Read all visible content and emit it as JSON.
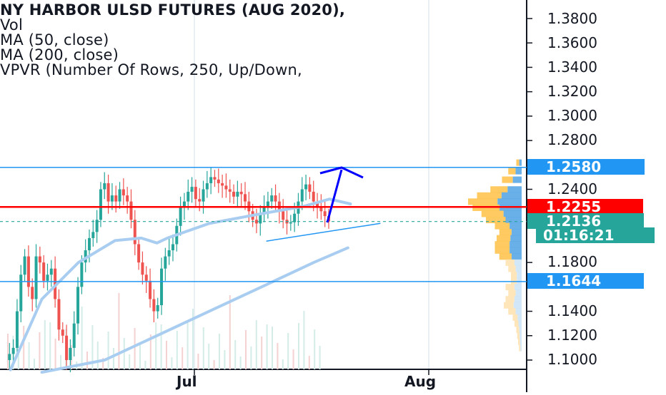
{
  "legend": {
    "title": "NY HARBOR ULSD FUTURES (AUG 2020),",
    "indicators": [
      "Vol",
      "MA (50, close)",
      "MA (200, close)",
      "VPVR (Number Of Rows, 250, Up/Down,"
    ]
  },
  "price_axis": {
    "ticks": [
      "1.3800",
      "1.3600",
      "1.3400",
      "1.3200",
      "1.3000",
      "1.2800",
      "1.2400",
      "1.1800",
      "1.1400",
      "1.1200",
      "1.1000"
    ]
  },
  "time_axis": {
    "labels": [
      "Jul",
      "Aug"
    ]
  },
  "tags": {
    "resistance": "1.2580",
    "current_level": "1.2255",
    "last_price": "1.2136",
    "countdown": "01:16:21",
    "support": "1.1644"
  },
  "colors": {
    "up": "#26a69a",
    "down": "#ef5350",
    "accent_blue": "#2196f3",
    "red_level": "#ff0000",
    "ma": "#a8cdf0",
    "arrow": "#0000ff"
  },
  "chart_data": {
    "type": "candlestick",
    "title": "NY HARBOR ULSD FUTURES (AUG 2020)",
    "indicators": [
      "Vol",
      "MA (50, close)",
      "MA (200, close)",
      "VPVR (Number Of Rows, 250, Up/Down)"
    ],
    "y_axis": {
      "min": 1.09,
      "max": 1.395,
      "ticks": [
        1.38,
        1.36,
        1.34,
        1.32,
        1.3,
        1.28,
        1.24,
        1.18,
        1.14,
        1.12,
        1.1
      ]
    },
    "x_axis": {
      "labels": [
        "Jul",
        "Aug"
      ]
    },
    "levels": [
      {
        "label": "resistance",
        "value": 1.258
      },
      {
        "label": "red line",
        "value": 1.2255
      },
      {
        "label": "last price",
        "value": 1.2136
      },
      {
        "label": "support",
        "value": 1.1644
      }
    ],
    "price_path": [
      1.1,
      1.105,
      1.11,
      1.14,
      1.17,
      1.185,
      1.16,
      1.15,
      1.185,
      1.18,
      1.165,
      1.17,
      1.175,
      1.15,
      1.125,
      1.12,
      1.1,
      1.11,
      1.13,
      1.16,
      1.18,
      1.19,
      1.2,
      1.205,
      1.215,
      1.24,
      1.245,
      1.23,
      1.235,
      1.23,
      1.24,
      1.235,
      1.23,
      1.215,
      1.195,
      1.18,
      1.17,
      1.165,
      1.15,
      1.14,
      1.145,
      1.175,
      1.185,
      1.19,
      1.195,
      1.21,
      1.225,
      1.23,
      1.238,
      1.242,
      1.232,
      1.23,
      1.24,
      1.245,
      1.25,
      1.248,
      1.245,
      1.243,
      1.24,
      1.238,
      1.234,
      1.238,
      1.236,
      1.23,
      1.222,
      1.215,
      1.212,
      1.22,
      1.225,
      1.23,
      1.235,
      1.23,
      1.222,
      1.215,
      1.212,
      1.213,
      1.22,
      1.23,
      1.24,
      1.244,
      1.238,
      1.23,
      1.226,
      1.222,
      1.218,
      1.2136
    ],
    "ma50": [
      [
        0.02,
        1.092
      ],
      [
        0.08,
        1.15
      ],
      [
        0.15,
        1.18
      ],
      [
        0.22,
        1.198
      ],
      [
        0.27,
        1.2
      ],
      [
        0.3,
        1.196
      ],
      [
        0.32,
        1.2
      ],
      [
        0.4,
        1.212
      ],
      [
        0.5,
        1.22
      ],
      [
        0.58,
        1.226
      ],
      [
        0.63,
        1.232
      ],
      [
        0.67,
        1.228
      ]
    ],
    "ma200": [
      [
        0.08,
        1.09
      ],
      [
        0.2,
        1.1
      ],
      [
        0.3,
        1.12
      ],
      [
        0.4,
        1.14
      ],
      [
        0.5,
        1.16
      ],
      [
        0.6,
        1.18
      ],
      [
        0.665,
        1.192
      ]
    ],
    "trendline": [
      [
        0.52,
        1.201
      ],
      [
        0.7,
        1.215
      ]
    ],
    "arrow": {
      "from": [
        0.67,
        1.216
      ],
      "to": [
        0.69,
        1.258
      ]
    },
    "vpvr": [
      [
        1.262,
        0.06
      ],
      [
        1.255,
        0.15
      ],
      [
        1.248,
        0.22
      ],
      [
        1.24,
        0.35
      ],
      [
        1.235,
        0.5
      ],
      [
        1.23,
        0.6
      ],
      [
        1.225,
        0.55
      ],
      [
        1.22,
        0.45
      ],
      [
        1.215,
        0.4
      ],
      [
        1.21,
        0.3
      ],
      [
        1.205,
        0.25
      ],
      [
        1.2,
        0.28
      ],
      [
        1.195,
        0.3
      ],
      [
        1.19,
        0.3
      ],
      [
        1.185,
        0.25
      ],
      [
        1.18,
        0.18
      ],
      [
        1.175,
        0.15
      ],
      [
        1.17,
        0.12
      ],
      [
        1.165,
        0.12
      ],
      [
        1.16,
        0.18
      ],
      [
        1.155,
        0.15
      ],
      [
        1.15,
        0.18
      ],
      [
        1.145,
        0.2
      ],
      [
        1.14,
        0.15
      ],
      [
        1.135,
        0.1
      ],
      [
        1.13,
        0.08
      ],
      [
        1.125,
        0.06
      ],
      [
        1.12,
        0.05
      ],
      [
        1.115,
        0.04
      ],
      [
        1.11,
        0.03
      ]
    ]
  }
}
